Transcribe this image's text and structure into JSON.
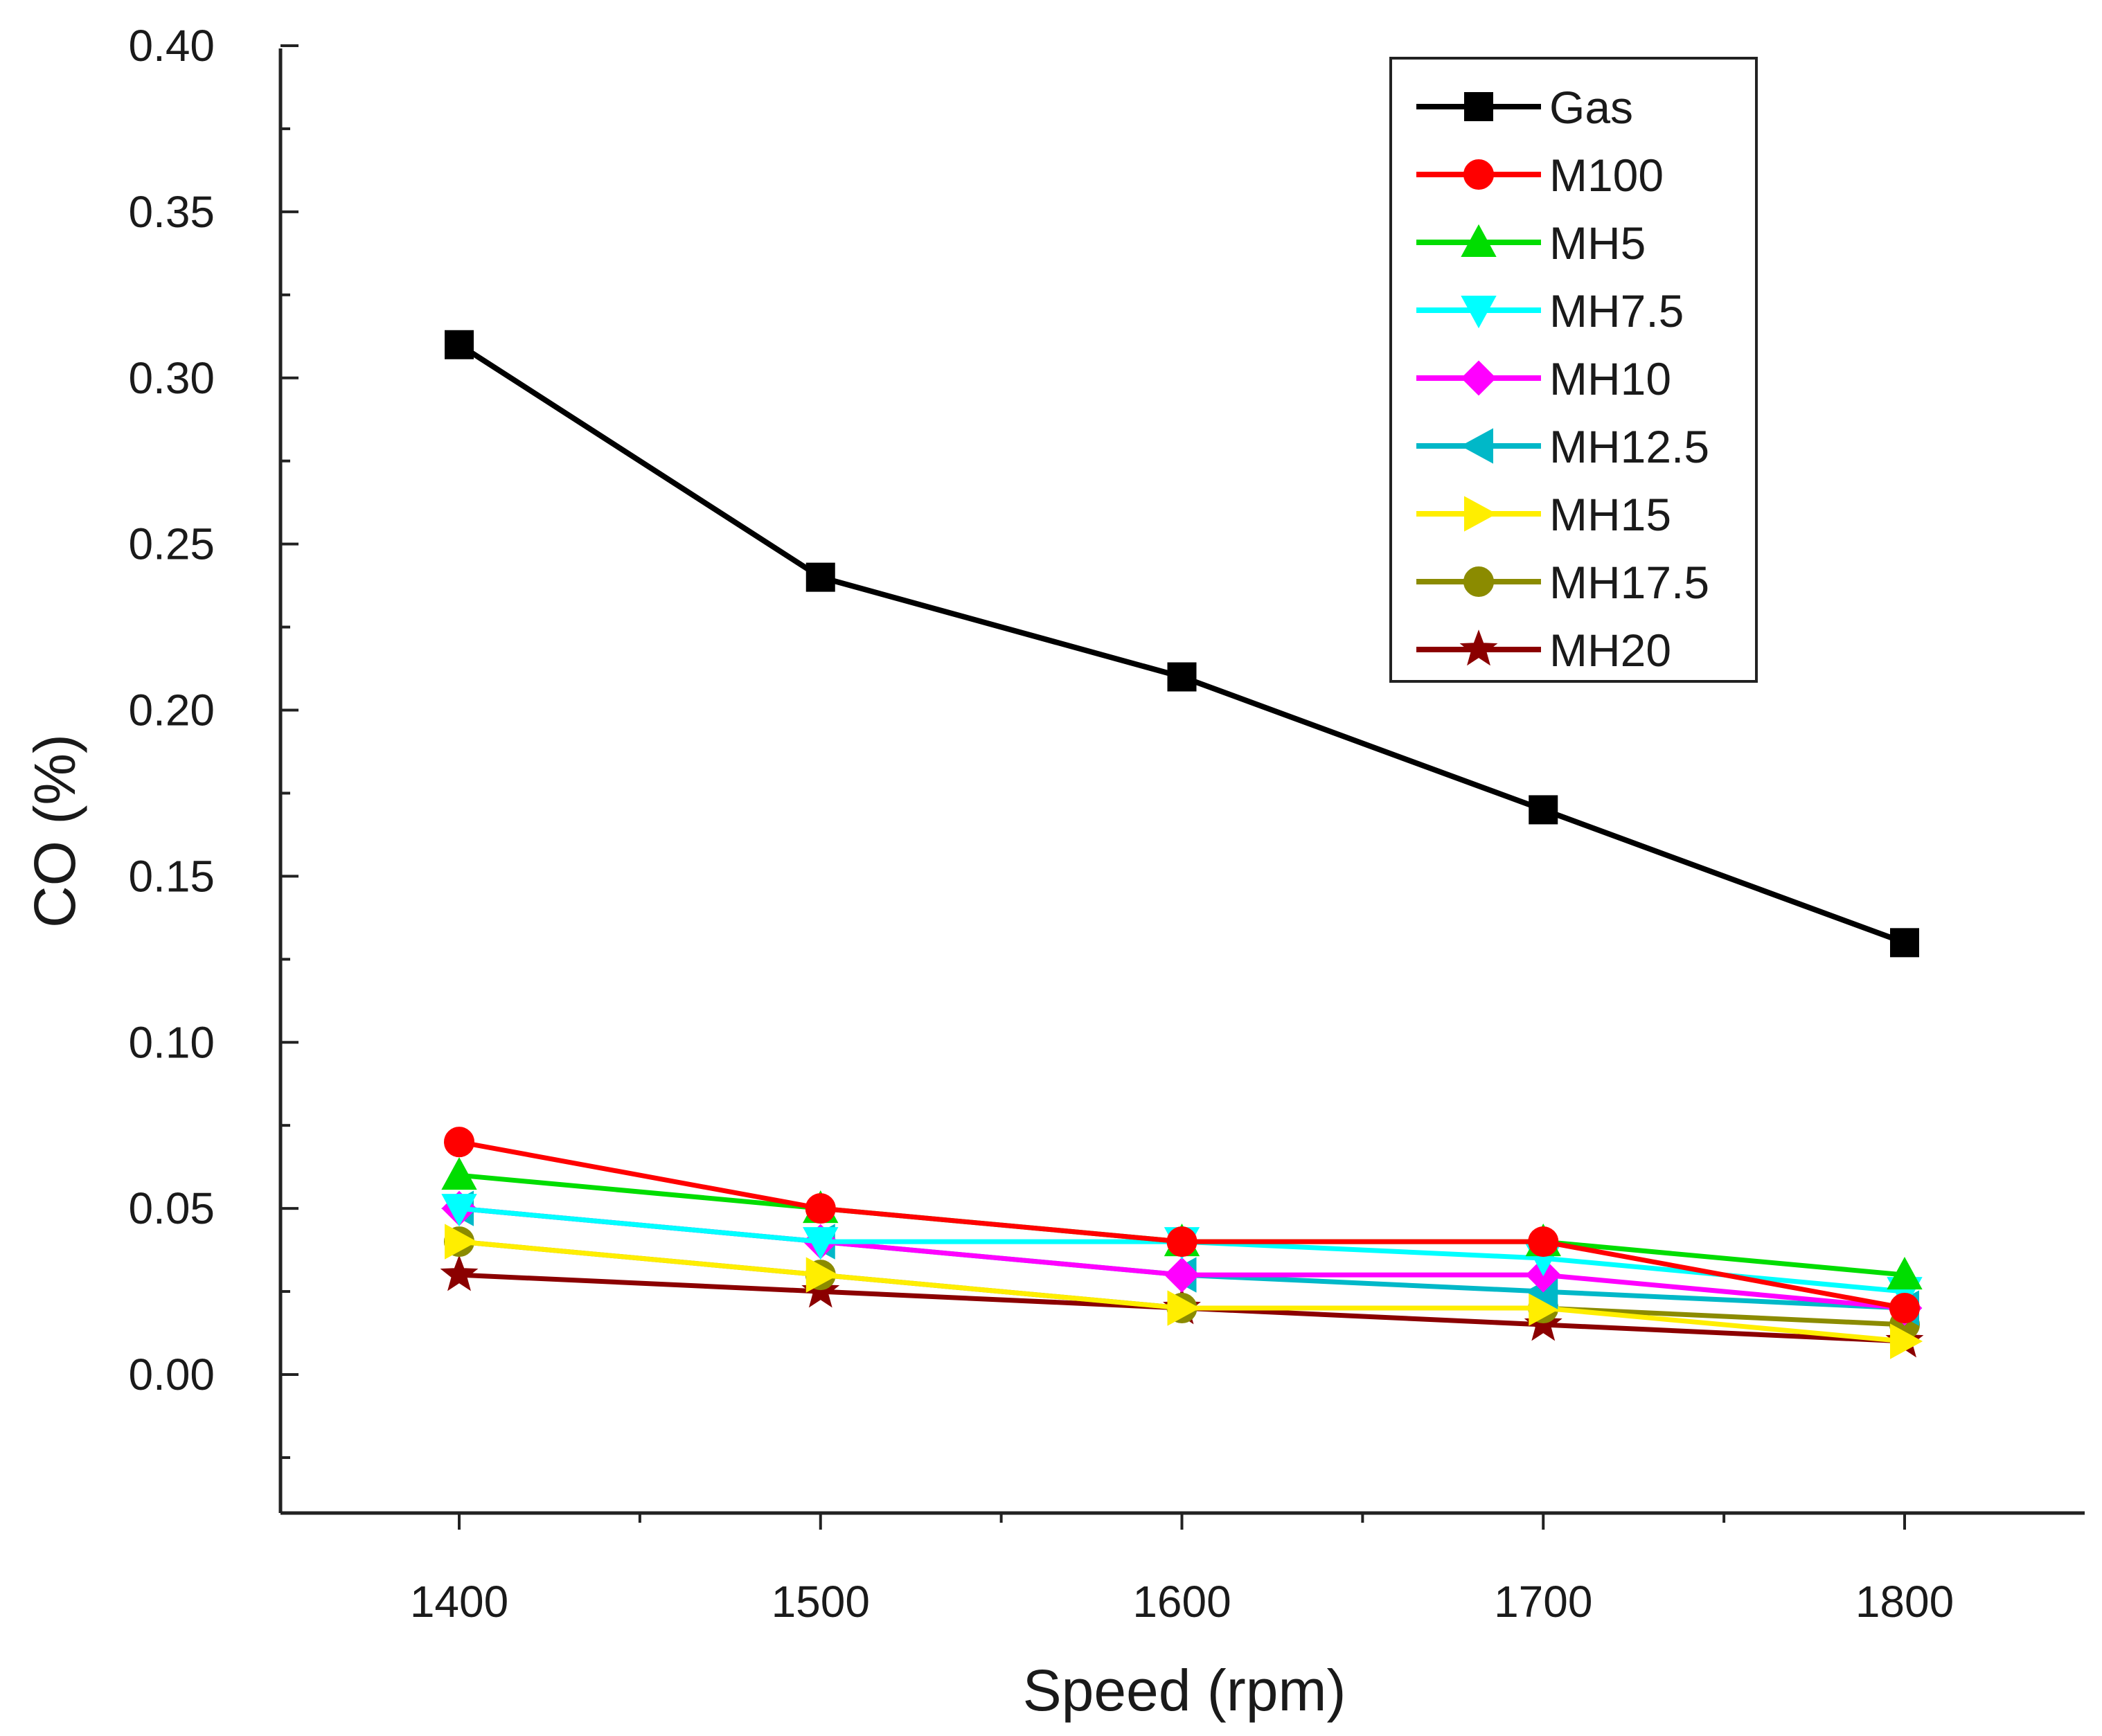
{
  "chart_data": {
    "type": "line",
    "xlabel": "Speed (rpm)",
    "ylabel": "CO (%)",
    "x": [
      1400,
      1500,
      1600,
      1700,
      1800
    ],
    "xlim": [
      1350,
      1850
    ],
    "ylim": [
      -0.04,
      0.4
    ],
    "x_ticks": [
      1400,
      1500,
      1600,
      1700,
      1800
    ],
    "x_tick_labels": [
      "1400",
      "1500",
      "1600",
      "1700",
      "1800"
    ],
    "y_ticks": [
      0.0,
      0.05,
      0.1,
      0.15,
      0.2,
      0.25,
      0.3,
      0.35,
      0.4
    ],
    "y_tick_labels": [
      "0.00",
      "0.05",
      "0.10",
      "0.15",
      "0.20",
      "0.25",
      "0.30",
      "0.35",
      "0.40"
    ],
    "grid": false,
    "legend_position": "top-right",
    "series": [
      {
        "name": "Gas",
        "color": "#000000",
        "marker": "square",
        "values": [
          0.31,
          0.24,
          0.21,
          0.17,
          0.13
        ]
      },
      {
        "name": "M100",
        "color": "#ff0000",
        "marker": "circle",
        "values": [
          0.07,
          0.05,
          0.04,
          0.04,
          0.02
        ]
      },
      {
        "name": "MH5",
        "color": "#00dd00",
        "marker": "triangle-up",
        "values": [
          0.06,
          0.05,
          0.04,
          0.04,
          0.03
        ]
      },
      {
        "name": "MH7.5",
        "color": "#00ffff",
        "marker": "triangle-down",
        "values": [
          0.05,
          0.04,
          0.04,
          0.035,
          0.025
        ]
      },
      {
        "name": "MH10",
        "color": "#ff00ff",
        "marker": "diamond",
        "values": [
          0.05,
          0.04,
          0.03,
          0.03,
          0.02
        ]
      },
      {
        "name": "MH12.5",
        "color": "#00b8c8",
        "marker": "triangle-left",
        "values": [
          0.05,
          0.04,
          0.03,
          0.025,
          0.02
        ]
      },
      {
        "name": "MH15",
        "color": "#ffee00",
        "marker": "triangle-right",
        "values": [
          0.04,
          0.03,
          0.02,
          0.02,
          0.01
        ]
      },
      {
        "name": "MH17.5",
        "color": "#8b8b00",
        "marker": "circle",
        "values": [
          0.04,
          0.03,
          0.02,
          0.02,
          0.015
        ]
      },
      {
        "name": "MH20",
        "color": "#8b0000",
        "marker": "star",
        "values": [
          0.03,
          0.025,
          0.02,
          0.015,
          0.01
        ]
      }
    ]
  }
}
